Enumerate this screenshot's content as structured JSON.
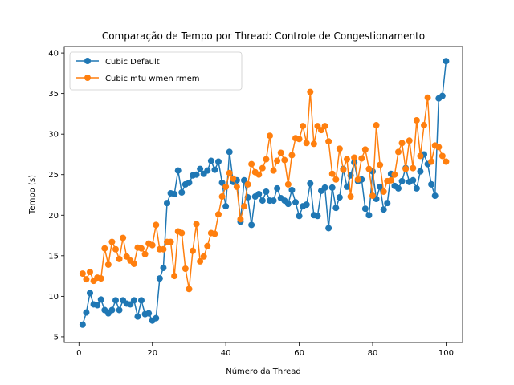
{
  "chart_data": {
    "type": "line",
    "title": "Comparação de Tempo por Thread: Controle de Congestionamento",
    "xlabel": "Número da Thread",
    "ylabel": "Tempo (s)",
    "xlim": [
      -4.0,
      104.5
    ],
    "ylim": [
      4.3,
      40.8
    ],
    "xticks": [
      0,
      20,
      40,
      60,
      80,
      100
    ],
    "yticks": [
      5,
      10,
      15,
      20,
      25,
      30,
      35,
      40
    ],
    "grid": false,
    "legend_position": "top-left",
    "x": [
      1,
      2,
      3,
      4,
      5,
      6,
      7,
      8,
      9,
      10,
      11,
      12,
      13,
      14,
      15,
      16,
      17,
      18,
      19,
      20,
      21,
      22,
      23,
      24,
      25,
      26,
      27,
      28,
      29,
      30,
      31,
      32,
      33,
      34,
      35,
      36,
      37,
      38,
      39,
      40,
      41,
      42,
      43,
      44,
      45,
      46,
      47,
      48,
      49,
      50,
      51,
      52,
      53,
      54,
      55,
      56,
      57,
      58,
      59,
      60,
      61,
      62,
      63,
      64,
      65,
      66,
      67,
      68,
      69,
      70,
      71,
      72,
      73,
      74,
      75,
      76,
      77,
      78,
      79,
      80,
      81,
      82,
      83,
      84,
      85,
      86,
      87,
      88,
      89,
      90,
      91,
      92,
      93,
      94,
      95,
      96,
      97,
      98,
      99,
      100
    ],
    "series": [
      {
        "name": "Cubic Default",
        "color": "#1f77b4",
        "values": [
          6.5,
          8.0,
          10.4,
          9.0,
          8.9,
          9.6,
          8.3,
          7.9,
          8.3,
          9.5,
          8.3,
          9.5,
          9.1,
          9.0,
          9.5,
          7.5,
          9.5,
          7.8,
          7.9,
          7.0,
          7.3,
          12.2,
          13.5,
          21.5,
          22.7,
          22.6,
          25.5,
          22.8,
          23.8,
          24.0,
          24.9,
          25.0,
          25.7,
          25.1,
          25.5,
          26.7,
          25.6,
          26.6,
          24.0,
          21.1,
          27.8,
          24.1,
          24.3,
          19.2,
          24.3,
          22.2,
          18.8,
          22.3,
          22.6,
          21.8,
          22.9,
          21.8,
          21.8,
          23.3,
          22.1,
          21.8,
          21.4,
          23.1,
          21.6,
          19.9,
          21.1,
          21.3,
          23.9,
          20.0,
          19.9,
          23.0,
          23.4,
          18.4,
          23.4,
          20.9,
          22.2,
          25.7,
          23.5,
          24.9,
          26.5,
          24.2,
          24.4,
          20.8,
          20.0,
          25.4,
          22.0,
          23.5,
          20.7,
          21.5,
          25.1,
          23.6,
          23.3,
          24.2,
          25.8,
          24.1,
          24.3,
          23.3,
          25.4,
          27.5,
          26.3,
          23.8,
          22.4,
          34.4,
          34.7,
          39.0
        ]
      },
      {
        "name": "Cubic mtu wmen rmem",
        "color": "#ff7f0e",
        "values": [
          12.8,
          12.1,
          13.0,
          11.9,
          12.3,
          12.2,
          15.9,
          13.9,
          16.7,
          15.8,
          14.6,
          17.2,
          14.9,
          14.4,
          14.0,
          16.0,
          15.9,
          15.2,
          16.5,
          16.3,
          18.8,
          15.8,
          15.8,
          16.7,
          16.7,
          12.5,
          18.0,
          17.8,
          13.4,
          10.9,
          15.6,
          18.9,
          14.3,
          14.9,
          16.2,
          17.8,
          17.7,
          20.1,
          22.3,
          23.5,
          25.2,
          24.5,
          23.5,
          19.5,
          21.1,
          23.8,
          26.3,
          25.3,
          25.0,
          25.8,
          26.9,
          29.8,
          25.5,
          26.7,
          27.7,
          26.8,
          23.8,
          27.4,
          29.5,
          29.4,
          31.0,
          28.9,
          35.2,
          28.8,
          31.0,
          30.5,
          31.0,
          29.1,
          25.1,
          24.4,
          28.2,
          25.6,
          26.9,
          22.3,
          27.1,
          24.4,
          27.0,
          28.1,
          25.7,
          22.4,
          31.1,
          26.2,
          22.9,
          24.2,
          24.3,
          25.0,
          27.8,
          28.9,
          25.7,
          29.2,
          25.8,
          31.7,
          27.3,
          31.1,
          34.5,
          26.6,
          28.6,
          28.4,
          27.3,
          26.6
        ]
      }
    ]
  }
}
